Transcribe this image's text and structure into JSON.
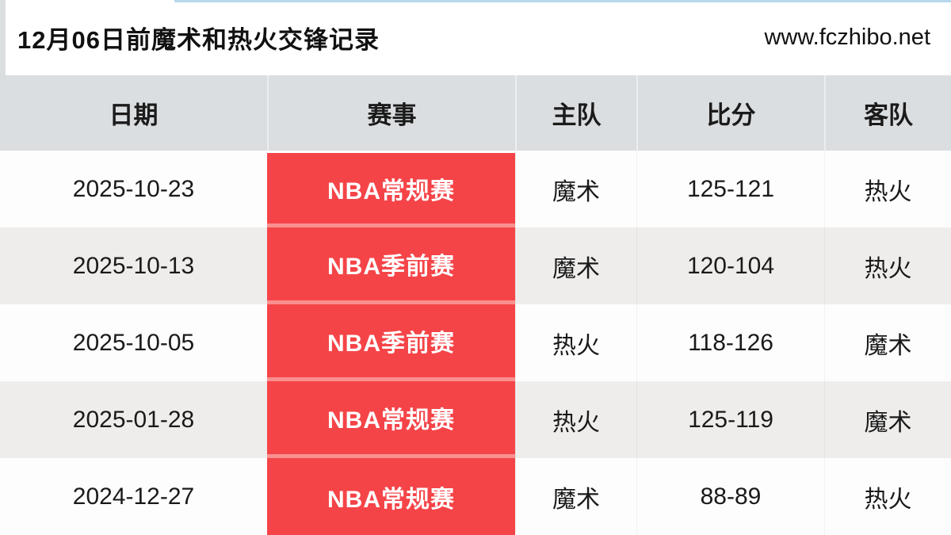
{
  "header": {
    "title": "12月06日前魔术和热火交锋记录",
    "site_url": "www.fczhibo.net"
  },
  "table": {
    "columns": {
      "date": "日期",
      "event": "赛事",
      "home": "主队",
      "score": "比分",
      "away": "客队"
    },
    "rows": [
      {
        "date": "2025-10-23",
        "event": "NBA常规赛",
        "home": "魔术",
        "score": "125-121",
        "away": "热火"
      },
      {
        "date": "2025-10-13",
        "event": "NBA季前赛",
        "home": "魔术",
        "score": "120-104",
        "away": "热火"
      },
      {
        "date": "2025-10-05",
        "event": "NBA季前赛",
        "home": "热火",
        "score": "118-126",
        "away": "魔术"
      },
      {
        "date": "2025-01-28",
        "event": "NBA常规赛",
        "home": "热火",
        "score": "125-119",
        "away": "魔术"
      },
      {
        "date": "2024-12-27",
        "event": "NBA常规赛",
        "home": "魔术",
        "score": "88-89",
        "away": "热火"
      }
    ]
  },
  "colors": {
    "accent_red": "#f54448",
    "event_separator_pink": "#f9908f",
    "header_bg": "#dbdee0",
    "alt_row_bg": "#efedec",
    "top_line_blue": "#b9d7ee"
  }
}
